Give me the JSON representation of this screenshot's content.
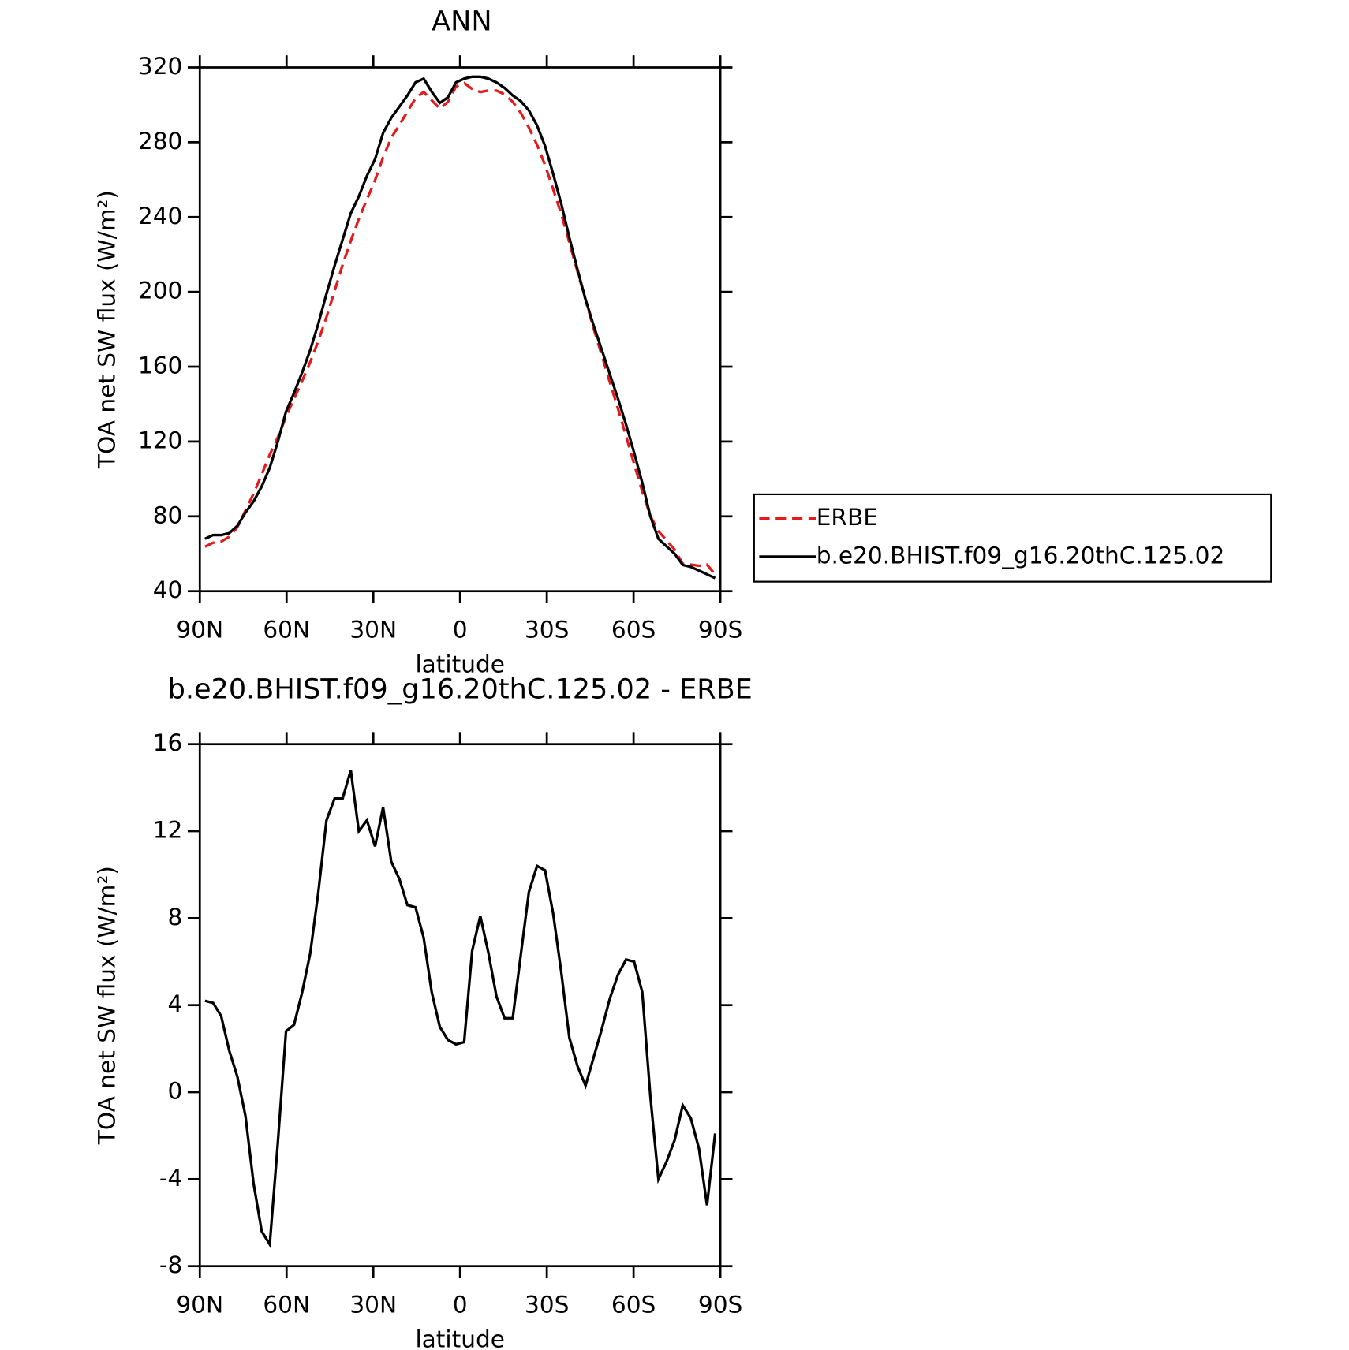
{
  "chart_data": [
    {
      "type": "line",
      "title": "ANN",
      "xlabel": "latitude",
      "ylabel": "TOA net SW flux (W/m²)",
      "x": [
        88.2,
        85.4,
        82.6,
        79.8,
        77,
        74.2,
        71.4,
        68.6,
        65.8,
        63,
        60.2,
        57.4,
        54.6,
        51.8,
        49,
        46.2,
        43.4,
        40.6,
        37.8,
        35,
        32.2,
        29.4,
        26.6,
        23.8,
        21,
        18.2,
        15.4,
        12.6,
        9.8,
        7,
        4.2,
        1.4,
        -1.4,
        -4.2,
        -7,
        -9.8,
        -12.6,
        -15.4,
        -18.2,
        -21,
        -23.8,
        -26.6,
        -29.4,
        -32.2,
        -35,
        -37.8,
        -40.6,
        -43.4,
        -46.2,
        -49,
        -51.8,
        -54.6,
        -57.4,
        -60.2,
        -63,
        -65.8,
        -68.6,
        -71.4,
        -74.2,
        -77,
        -79.8,
        -82.6,
        -85.4,
        -88.2
      ],
      "series": [
        {
          "name": "ERBE",
          "color": "#e41a1c",
          "dash": true,
          "values": [
            63.8,
            65.9,
            66.5,
            69.1,
            74.3,
            83.1,
            92.2,
            102.4,
            113,
            122.3,
            133.2,
            142.9,
            152.4,
            162.6,
            173.8,
            186.5,
            200.5,
            214.5,
            227.2,
            239,
            249.5,
            259.7,
            271.9,
            282.4,
            289.2,
            296.4,
            303.5,
            306.9,
            302.4,
            298,
            301.6,
            309.8,
            311.7,
            308.5,
            306.9,
            307.6,
            307.6,
            305.6,
            301.6,
            295.7,
            287.8,
            278.6,
            267.8,
            254.8,
            241.5,
            226.5,
            210.8,
            195.7,
            180.4,
            166.1,
            151.7,
            137.6,
            122.9,
            108,
            93.4,
            80.2,
            72,
            67.2,
            62.2,
            54.6,
            54.2,
            53.6,
            54.2,
            48.9
          ]
        },
        {
          "name": "b.e20.BHIST.f09_g16.20thC.125.02",
          "color": "#000000",
          "dash": false,
          "values": [
            68,
            70,
            70,
            71,
            75,
            82,
            88,
            96,
            106,
            120,
            136,
            146,
            157,
            169,
            183,
            199,
            214,
            228,
            242,
            251,
            262,
            271,
            285,
            293,
            299,
            305,
            312,
            314,
            307,
            301,
            304,
            312,
            314,
            315,
            315,
            314,
            312,
            309,
            305,
            302,
            297,
            289,
            278,
            263,
            247,
            229,
            212,
            196,
            182,
            169,
            156,
            143,
            129,
            114,
            98,
            80,
            68,
            64,
            60,
            54,
            53,
            51,
            49,
            47
          ]
        }
      ],
      "xlim": [
        90,
        -90
      ],
      "xticks": [
        {
          "value": 90,
          "label": "90N"
        },
        {
          "value": 60,
          "label": "60N"
        },
        {
          "value": 30,
          "label": "30N"
        },
        0,
        {
          "value": -30,
          "label": "30S"
        },
        {
          "value": -60,
          "label": "60S"
        },
        {
          "value": -90,
          "label": "90S"
        }
      ],
      "ylim": [
        40,
        320
      ],
      "yticks": [
        40,
        80,
        120,
        160,
        200,
        240,
        280,
        320
      ],
      "legend": "right"
    },
    {
      "type": "line",
      "title": "b.e20.BHIST.f09_g16.20thC.125.02 - ERBE",
      "xlabel": "latitude",
      "ylabel": "TOA net SW flux (W/m²)",
      "x": [
        88.2,
        85.4,
        82.6,
        79.8,
        77,
        74.2,
        71.4,
        68.6,
        65.8,
        63,
        60.2,
        57.4,
        54.6,
        51.8,
        49,
        46.2,
        43.4,
        40.6,
        37.8,
        35,
        32.2,
        29.4,
        26.6,
        23.8,
        21,
        18.2,
        15.4,
        12.6,
        9.8,
        7,
        4.2,
        1.4,
        -1.4,
        -4.2,
        -7,
        -9.8,
        -12.6,
        -15.4,
        -18.2,
        -21,
        -23.8,
        -26.6,
        -29.4,
        -32.2,
        -35,
        -37.8,
        -40.6,
        -43.4,
        -46.2,
        -49,
        -51.8,
        -54.6,
        -57.4,
        -60.2,
        -63,
        -65.8,
        -68.6,
        -71.4,
        -74.2,
        -77,
        -79.8,
        -82.6,
        -85.4,
        -88.2
      ],
      "series": [
        {
          "color": "#000000",
          "dash": false,
          "values": [
            4.2,
            4.1,
            3.5,
            1.9,
            0.7,
            -1.1,
            -4.2,
            -6.4,
            -7.0,
            -2.3,
            2.8,
            3.1,
            4.6,
            6.4,
            9.2,
            12.5,
            13.5,
            13.5,
            14.8,
            12.0,
            12.5,
            11.3,
            13.1,
            10.6,
            9.8,
            8.6,
            8.5,
            7.1,
            4.6,
            3.0,
            2.4,
            2.2,
            2.3,
            6.5,
            8.1,
            6.4,
            4.4,
            3.4,
            3.4,
            6.3,
            9.2,
            10.4,
            10.2,
            8.2,
            5.5,
            2.5,
            1.2,
            0.3,
            1.6,
            2.9,
            4.3,
            5.4,
            6.1,
            6.0,
            4.6,
            -0.2,
            -4.0,
            -3.2,
            -2.2,
            -0.6,
            -1.2,
            -2.6,
            -5.2,
            -1.9
          ]
        }
      ],
      "xlim": [
        90,
        -90
      ],
      "xticks": [
        {
          "value": 90,
          "label": "90N"
        },
        {
          "value": 60,
          "label": "60N"
        },
        {
          "value": 30,
          "label": "30N"
        },
        0,
        {
          "value": -30,
          "label": "30S"
        },
        {
          "value": -60,
          "label": "60S"
        },
        {
          "value": -90,
          "label": "90S"
        }
      ],
      "ylim": [
        -8,
        16
      ],
      "yticks": [
        -8,
        -4,
        0,
        4,
        8,
        12,
        16
      ]
    }
  ]
}
